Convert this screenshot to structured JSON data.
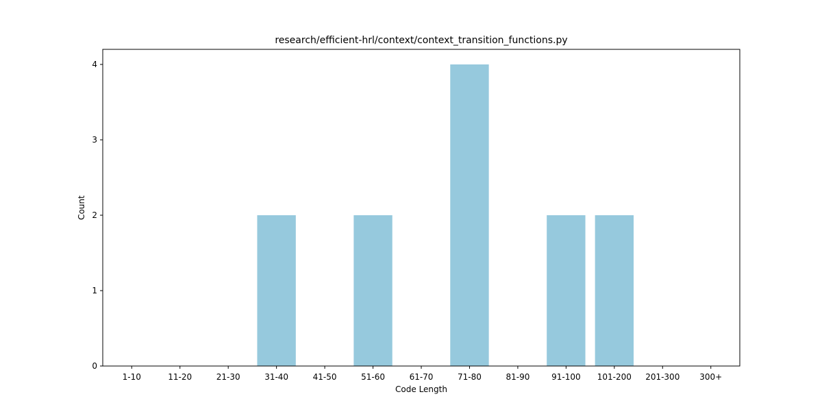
{
  "chart_data": {
    "type": "bar",
    "title": "research/efficient-hrl/context/context_transition_functions.py",
    "xlabel": "Code Length",
    "ylabel": "Count",
    "categories": [
      "1-10",
      "11-20",
      "21-30",
      "31-40",
      "41-50",
      "51-60",
      "61-70",
      "71-80",
      "81-90",
      "91-100",
      "101-200",
      "201-300",
      "300+"
    ],
    "values": [
      0,
      0,
      0,
      2,
      0,
      2,
      0,
      4,
      0,
      2,
      2,
      0,
      0
    ],
    "ylim": [
      0,
      4.2
    ],
    "yticks": [
      "0",
      "1",
      "2",
      "3",
      "4"
    ],
    "grid": false,
    "bar_color": "#96c9dd"
  }
}
